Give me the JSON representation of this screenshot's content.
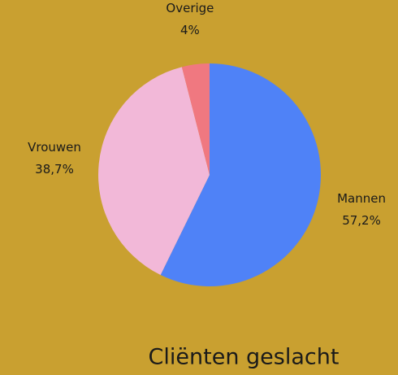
{
  "chart_data": {
    "type": "pie",
    "title": "Cliënten geslacht",
    "categories": [
      "Mannen",
      "Vrouwen",
      "Overige"
    ],
    "values": [
      57.2,
      38.7,
      4
    ],
    "value_labels": [
      "57,2%",
      "38,7%",
      "4%"
    ],
    "colors": [
      "#4f82f7",
      "#f2b8d8",
      "#f07880"
    ]
  }
}
